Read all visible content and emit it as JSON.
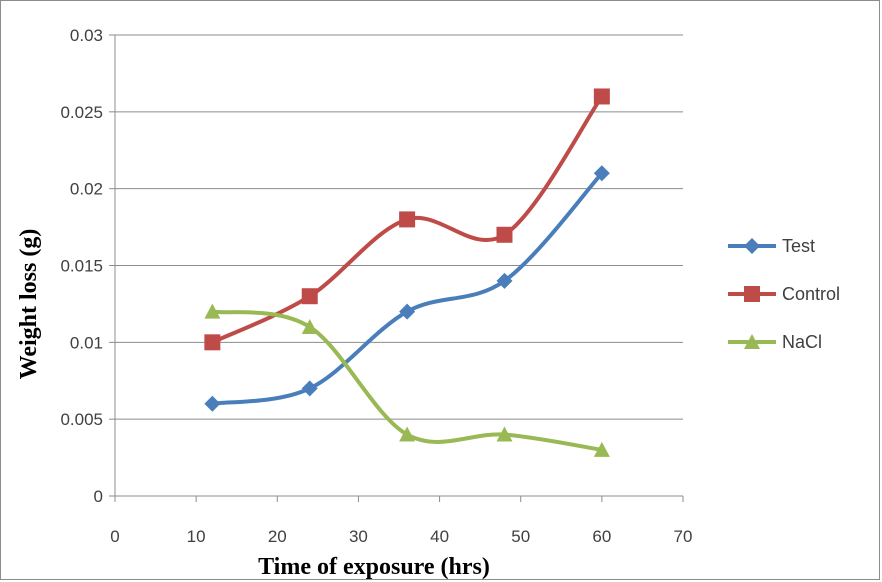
{
  "chart_data": {
    "type": "line",
    "xlabel": "Time of exposure (hrs)",
    "ylabel": "Weight loss (g)",
    "xlim": [
      0,
      70
    ],
    "ylim": [
      0,
      0.03
    ],
    "x_ticks": [
      "0",
      "10",
      "20",
      "30",
      "40",
      "50",
      "60",
      "70"
    ],
    "y_ticks": [
      "0",
      "0.005",
      "0.01",
      "0.015",
      "0.02",
      "0.025",
      "0.03"
    ],
    "grid": "horizontal",
    "legend_position": "right",
    "x": [
      12,
      24,
      36,
      48,
      60
    ],
    "series": [
      {
        "name": "Test",
        "values": [
          0.006,
          0.007,
          0.012,
          0.014,
          0.021
        ],
        "color": "#4a7ebb",
        "marker": "diamond"
      },
      {
        "name": "Control",
        "values": [
          0.01,
          0.013,
          0.018,
          0.017,
          0.026
        ],
        "color": "#be4b48",
        "marker": "square"
      },
      {
        "name": "NaCl",
        "values": [
          0.012,
          0.011,
          0.004,
          0.004,
          0.003
        ],
        "color": "#98b954",
        "marker": "triangle"
      }
    ]
  }
}
